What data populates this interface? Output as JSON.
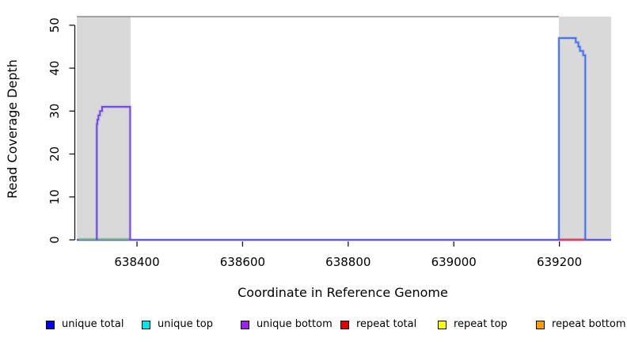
{
  "chart_data": {
    "type": "line",
    "title": "",
    "xlabel": "Coordinate in Reference Genome",
    "ylabel": "Read Coverage Depth",
    "xlim": [
      638286,
      639298
    ],
    "ylim": [
      0,
      52
    ],
    "x_ticks": [
      638400,
      638600,
      638800,
      639000,
      639200
    ],
    "y_ticks": [
      0,
      10,
      20,
      30,
      40,
      50
    ],
    "grid": false,
    "background": "#ffffff",
    "shaded_regions": [
      {
        "start": 638286,
        "end": 638388,
        "color": "#d9d9d9"
      },
      {
        "start": 639199,
        "end": 639298,
        "color": "#d9d9d9"
      }
    ],
    "reference_line": {
      "y": 52,
      "x_start": 638286,
      "x_end": 639199,
      "color": "#999999"
    },
    "series": [
      {
        "name": "unique coverage baseline",
        "color": "#5546e0",
        "points": [
          [
            638286,
            0
          ],
          [
            639298,
            0
          ]
        ]
      },
      {
        "name": "left region zero-level segment (green)",
        "color": "#6dbd6d",
        "points": [
          [
            638290,
            0.15
          ],
          [
            638387,
            0.15
          ]
        ]
      },
      {
        "name": "right region zero-level segment (repeat, red)",
        "color": "#ea3c3c",
        "points": [
          [
            639199,
            0.05
          ],
          [
            639249,
            0.05
          ]
        ]
      },
      {
        "name": "left coverage peak (purple, max 31)",
        "color": "#6840e6",
        "points": [
          [
            638324,
            0
          ],
          [
            638324,
            27
          ],
          [
            638325,
            27
          ],
          [
            638325,
            28
          ],
          [
            638327,
            28
          ],
          [
            638327,
            29
          ],
          [
            638330,
            29
          ],
          [
            638330,
            30
          ],
          [
            638334,
            30
          ],
          [
            638334,
            31
          ],
          [
            638387,
            31
          ],
          [
            638387,
            0
          ]
        ]
      },
      {
        "name": "right coverage peak (blue, max 47)",
        "color": "#3e6cf0",
        "points": [
          [
            639199,
            0
          ],
          [
            639199,
            47
          ],
          [
            639231,
            47
          ],
          [
            639231,
            46
          ],
          [
            639236,
            46
          ],
          [
            639236,
            45
          ],
          [
            639239,
            45
          ],
          [
            639239,
            44
          ],
          [
            639245,
            44
          ],
          [
            639245,
            43
          ],
          [
            639249,
            43
          ],
          [
            639249,
            0
          ]
        ]
      }
    ],
    "legend": {
      "position": "bottom",
      "items": [
        {
          "label": "unique total",
          "color": "#0000ee"
        },
        {
          "label": "unique top",
          "color": "#00e6e6"
        },
        {
          "label": "unique bottom",
          "color": "#a020f0"
        },
        {
          "label": "repeat total",
          "color": "#e60000"
        },
        {
          "label": "repeat top",
          "color": "#ffff00"
        },
        {
          "label": "repeat bottom",
          "color": "#ff9d00"
        }
      ]
    }
  }
}
